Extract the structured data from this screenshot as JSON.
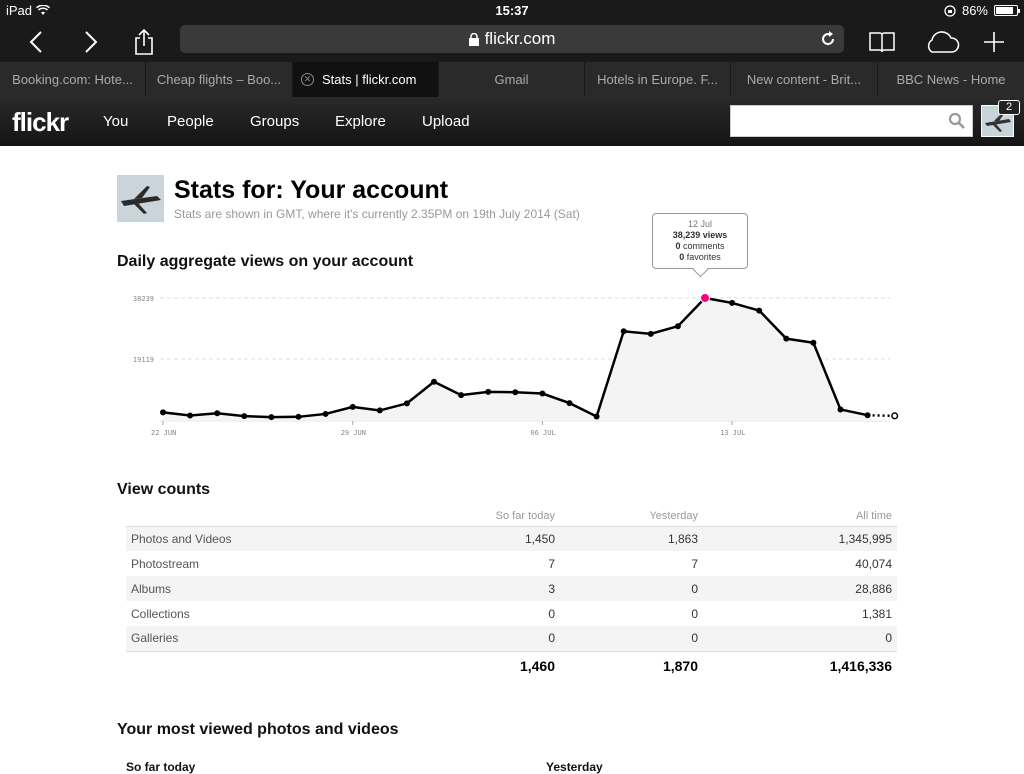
{
  "status_bar": {
    "device": "iPad",
    "time": "15:37",
    "battery": "86%",
    "battery_level": 0.86
  },
  "browser": {
    "url": "flickr.com",
    "tabs": [
      {
        "title": "Booking.com: Hote...",
        "active": false
      },
      {
        "title": "Cheap flights – Boo...",
        "active": false
      },
      {
        "title": "Stats | flickr.com",
        "active": true
      },
      {
        "title": "Gmail",
        "active": false
      },
      {
        "title": "Hotels in Europe. F...",
        "active": false
      },
      {
        "title": "New content - Brit...",
        "active": false
      },
      {
        "title": "BBC News - Home",
        "active": false
      }
    ]
  },
  "flickr_nav": {
    "logo": "flickr",
    "items": [
      "You",
      "People",
      "Groups",
      "Explore",
      "Upload"
    ],
    "search_placeholder": "",
    "notification_count": "2"
  },
  "page": {
    "title": "Stats for: Your account",
    "subtitle": "Stats are shown in GMT, where it's currently 2.35PM on 19th July 2014 (Sat)",
    "chart_heading": "Daily aggregate views on your account",
    "view_counts_heading": "View counts",
    "most_viewed_heading": "Your most viewed photos and videos",
    "most_viewed_cols": [
      "So far today",
      "Yesterday"
    ]
  },
  "tooltip": {
    "date": "12 Jul",
    "views_value": "38,239",
    "views_label": "views",
    "comments_value": "0",
    "comments_label": "comments",
    "favorites_value": "0",
    "favorites_label": "favorites"
  },
  "chart_data": {
    "type": "line",
    "x": [
      "22 Jun",
      "23 Jun",
      "24 Jun",
      "25 Jun",
      "26 Jun",
      "27 Jun",
      "28 Jun",
      "29 Jun",
      "30 Jun",
      "01 Jul",
      "02 Jul",
      "03 Jul",
      "04 Jul",
      "05 Jul",
      "06 Jul",
      "07 Jul",
      "08 Jul",
      "09 Jul",
      "10 Jul",
      "11 Jul",
      "12 Jul",
      "13 Jul",
      "14 Jul",
      "15 Jul",
      "16 Jul",
      "17 Jul",
      "18 Jul",
      "19 Jul"
    ],
    "values": [
      2400,
      1400,
      2100,
      1200,
      900,
      1000,
      1900,
      4100,
      3000,
      5200,
      12000,
      7800,
      8800,
      8700,
      8300,
      5300,
      1100,
      27800,
      27000,
      29400,
      38239,
      36700,
      34300,
      25500,
      24200,
      3300,
      1500,
      1300
    ],
    "ylim": [
      0,
      38239
    ],
    "yticks": [
      {
        "value": 38239,
        "label": "38239"
      },
      {
        "value": 19119,
        "label": "19119"
      }
    ],
    "xticks": [
      {
        "index": 0,
        "label": "22 JUN"
      },
      {
        "index": 7,
        "label": "29 JUN"
      },
      {
        "index": 14,
        "label": "06 JUL"
      },
      {
        "index": 21,
        "label": "13 JUL"
      }
    ],
    "highlight_index": 20,
    "partial_index": 27,
    "line_color": "#000000",
    "highlight_color": "#ff0084",
    "grid": true
  },
  "view_counts": {
    "columns": [
      "",
      "So far today",
      "Yesterday",
      "All time"
    ],
    "rows": [
      {
        "label": "Photos and Videos",
        "today": "1,450",
        "yesterday": "1,863",
        "all_time": "1,345,995"
      },
      {
        "label": "Photostream",
        "today": "7",
        "yesterday": "7",
        "all_time": "40,074"
      },
      {
        "label": "Albums",
        "today": "3",
        "yesterday": "0",
        "all_time": "28,886"
      },
      {
        "label": "Collections",
        "today": "0",
        "yesterday": "0",
        "all_time": "1,381"
      },
      {
        "label": "Galleries",
        "today": "0",
        "yesterday": "0",
        "all_time": "0"
      }
    ],
    "totals": {
      "today": "1,460",
      "yesterday": "1,870",
      "all_time": "1,416,336"
    }
  }
}
